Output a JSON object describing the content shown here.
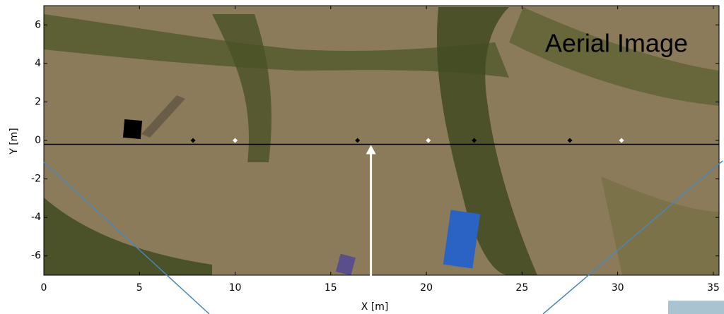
{
  "chart_data": {
    "type": "image",
    "annotation": "Aerial Image",
    "x_label": "X [m]",
    "y_label": "Y [m]",
    "xlim": [
      0,
      35.3
    ],
    "ylim": [
      -7,
      7
    ],
    "xticks": [
      0,
      5,
      10,
      15,
      20,
      25,
      30,
      35
    ],
    "yticks": [
      -6,
      -4,
      -2,
      0,
      2,
      4,
      6
    ],
    "reference_line": {
      "y": -0.2,
      "color": "#000000"
    },
    "arrow_x": 17.1,
    "series": [
      {
        "color": "#000000",
        "x": [
          7.8,
          16.4,
          22.5,
          27.5
        ],
        "values": [
          0,
          0,
          0,
          0
        ]
      },
      {
        "color": "#ffffff",
        "x": [
          10,
          20.1,
          30.2
        ],
        "values": [
          0,
          0,
          0
        ]
      }
    ]
  }
}
